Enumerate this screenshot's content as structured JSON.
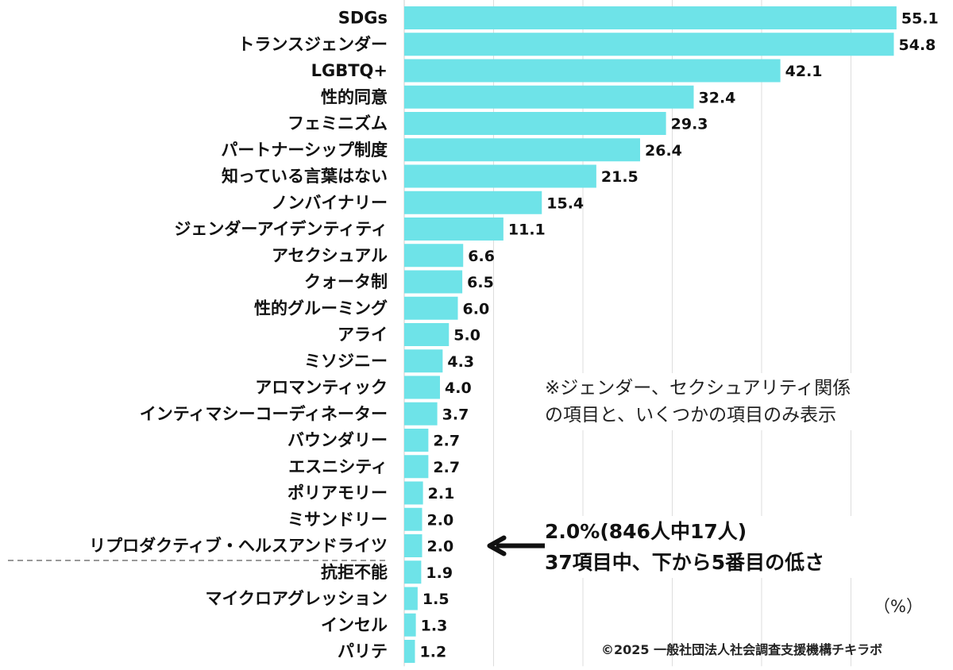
{
  "chart_data": {
    "type": "bar",
    "orientation": "horizontal",
    "categories": [
      "SDGs",
      "トランスジェンダー",
      "LGBTQ+",
      "性的同意",
      "フェミニズム",
      "パートナーシップ制度",
      "知っている言葉はない",
      "ノンバイナリー",
      "ジェンダーアイデンティティ",
      "アセクシュアル",
      "クォータ制",
      "性的グルーミング",
      "アライ",
      "ミソジニー",
      "アロマンティック",
      "インティマシーコーディネーター",
      "バウンダリー",
      "エスニシティ",
      "ポリアモリー",
      "ミサンドリー",
      "リプロダクティブ・ヘルスアンドライツ",
      "抗拒不能",
      "マイクロアグレッション",
      "インセル",
      "パリテ"
    ],
    "values": [
      55.1,
      54.8,
      42.1,
      32.4,
      29.3,
      26.4,
      21.5,
      15.4,
      11.1,
      6.6,
      6.5,
      6.0,
      5.0,
      4.3,
      4.0,
      3.7,
      2.7,
      2.7,
      2.1,
      2.0,
      2.0,
      1.9,
      1.5,
      1.3,
      1.2
    ],
    "value_labels": [
      "55.1",
      "54.8",
      "42.1",
      "32.4",
      "29.3",
      "26.4",
      "21.5",
      "15.4",
      "11.1",
      "6.6",
      "6.5",
      "6.0",
      "5.0",
      "4.3",
      "4.0",
      "3.7",
      "2.7",
      "2.7",
      "2.1",
      "2.0",
      "2.0",
      "1.9",
      "1.5",
      "1.3",
      "1.2"
    ],
    "highlighted_category": "リプロダクティブ・ヘルスアンドライツ",
    "xlim": [
      0,
      60
    ],
    "gridlines": [
      10,
      20,
      30,
      40,
      50
    ],
    "grid": true,
    "bar_color": "#6ee3e8",
    "grid_color": "#dddddd",
    "unit_label": "（%）"
  },
  "annotations": {
    "note_line1": "※ジェンダー、セクシュアリティ関係",
    "note_line2": "の項目と、いくつかの項目のみ表示",
    "callout_line1": "2.0%(846人中17人)",
    "callout_line2": "37項目中、下から5番目の低さ",
    "callout_arrow": "left-arrow-icon"
  },
  "source": "©2025 一般社団法人社会調査支援機構チキラボ"
}
